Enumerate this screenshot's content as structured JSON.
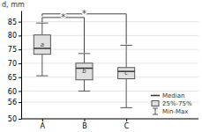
{
  "chart_data": {
    "type": "box",
    "categories": [
      "A",
      "B",
      "C"
    ],
    "medians": [
      75.37,
      68.23,
      67.07
    ],
    "q1": [
      73.25,
      64.04,
      64.42
    ],
    "q3": [
      80.21,
      70.05,
      68.47
    ],
    "mins": [
      65.5,
      60.0,
      54.0
    ],
    "maxs": [
      84.5,
      73.5,
      76.5
    ],
    "box_labels": [
      "a",
      "b",
      "c"
    ],
    "color": "#e0e0e0",
    "ylim": [
      50,
      89
    ],
    "yticks": [
      50,
      56,
      60,
      65,
      70,
      75,
      80,
      85
    ],
    "ylabel": "d, mm",
    "grid": true,
    "legend": "lower right",
    "legend_entries": [
      "Median",
      "25%-75%",
      "Min-Max"
    ],
    "annotations": [
      {
        "text": "*",
        "between": [
          "A",
          "B"
        ],
        "y": 86.5,
        "ends": [
          84.8,
          73.8
        ]
      },
      {
        "text": "*",
        "between": [
          "A",
          "C"
        ],
        "y": 87.8,
        "ends": [
          87.0,
          76.8
        ]
      }
    ]
  }
}
